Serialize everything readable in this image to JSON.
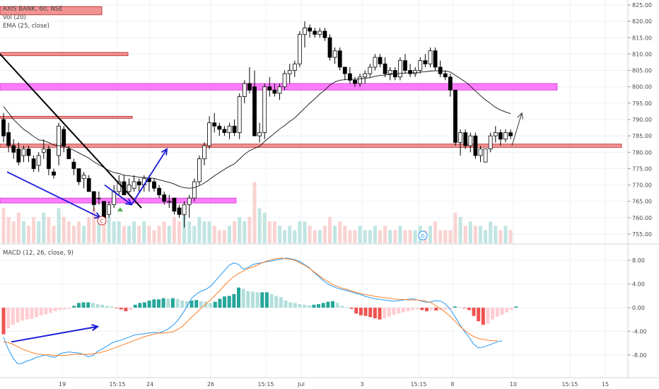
{
  "header": {
    "symbol": "AXIS BANK, 60, NSE",
    "vol": "Vol (20)",
    "ema": "EMA (25, close)",
    "macd": "MACD (12, 26, close, 9)"
  },
  "colors": {
    "up": "#26a69a",
    "down": "#ef5350",
    "candle_up": "#ffffff",
    "candle_down": "#000000",
    "zone_magenta": "#ff66ff",
    "zone_red": "#f08080",
    "arrow_blue": "#1a1adb",
    "macd_line": "#2196f3",
    "signal_line": "#ff7f27",
    "grid": "#eef1f5"
  },
  "chart_data": [
    {
      "type": "candlestick",
      "title": "AXIS BANK, 60, NSE",
      "ylim": [
        751,
        826
      ],
      "y_ticks": [
        755,
        760,
        765,
        770,
        775,
        780,
        785,
        790,
        795,
        800,
        805,
        810,
        815,
        820,
        825
      ],
      "x_tick_labels": [
        "19",
        "15:15",
        "24",
        "26",
        "15:15",
        "Jul",
        "3",
        "15:15",
        "8",
        "10",
        "15:15",
        "15"
      ],
      "ohlc": [
        [
          790,
          792,
          783,
          785
        ],
        [
          786,
          789,
          780,
          782
        ],
        [
          782,
          784,
          778,
          780
        ],
        [
          781,
          783,
          776,
          777
        ],
        [
          779,
          782,
          777,
          781
        ],
        [
          781,
          782,
          777,
          779
        ],
        [
          778,
          779,
          774,
          775
        ],
        [
          776,
          780,
          774,
          779
        ],
        [
          780,
          784,
          778,
          781
        ],
        [
          781,
          782,
          773,
          775
        ],
        [
          774,
          775,
          772,
          773
        ],
        [
          779,
          789,
          776,
          788
        ],
        [
          787,
          788,
          780,
          782
        ],
        [
          781,
          782,
          778,
          778
        ],
        [
          777,
          778,
          773,
          775
        ],
        [
          775,
          775,
          770,
          771
        ],
        [
          772,
          774,
          769,
          773
        ],
        [
          772,
          773,
          768,
          768
        ],
        [
          768,
          768,
          762,
          764
        ],
        [
          766,
          768,
          764,
          766
        ],
        [
          765,
          765,
          759,
          760
        ],
        [
          761,
          765,
          760,
          764
        ],
        [
          764,
          770,
          763,
          768
        ],
        [
          768,
          773,
          767,
          771
        ],
        [
          771,
          773,
          767,
          767
        ],
        [
          768,
          772,
          767,
          770
        ],
        [
          769,
          773,
          768,
          771
        ],
        [
          771,
          772,
          768,
          770
        ],
        [
          770,
          773,
          768,
          772
        ],
        [
          772,
          773,
          768,
          771
        ],
        [
          771,
          772,
          768,
          769
        ],
        [
          769,
          770,
          766,
          767
        ],
        [
          767,
          768,
          764,
          765
        ],
        [
          765,
          767,
          763,
          765
        ],
        [
          766,
          766,
          761,
          762
        ],
        [
          763,
          764,
          760,
          761
        ],
        [
          761,
          765,
          757,
          764
        ],
        [
          764,
          767,
          760,
          766
        ],
        [
          766,
          772,
          765,
          771
        ],
        [
          771,
          779,
          770,
          778
        ],
        [
          778,
          783,
          776,
          782
        ],
        [
          782,
          791,
          781,
          789
        ],
        [
          789,
          792,
          786,
          788
        ],
        [
          788,
          789,
          785,
          787
        ],
        [
          787,
          788,
          785,
          786
        ],
        [
          786,
          789,
          784,
          788
        ],
        [
          788,
          790,
          785,
          786
        ],
        [
          786,
          798,
          784,
          797
        ],
        [
          797,
          802,
          795,
          801
        ],
        [
          801,
          806,
          798,
          799
        ],
        [
          800,
          805,
          785,
          785
        ],
        [
          785,
          789,
          783,
          786
        ],
        [
          786,
          801,
          784,
          800
        ],
        [
          800,
          803,
          797,
          799
        ],
        [
          799,
          801,
          797,
          798
        ],
        [
          798,
          801,
          796,
          800
        ],
        [
          800,
          805,
          799,
          804
        ],
        [
          804,
          807,
          801,
          805
        ],
        [
          805,
          808,
          803,
          807
        ],
        [
          807,
          817,
          806,
          816
        ],
        [
          816,
          820,
          812,
          818
        ],
        [
          818,
          819,
          815,
          817
        ],
        [
          817,
          818,
          815,
          816
        ],
        [
          816,
          818,
          815,
          817
        ],
        [
          817,
          818,
          814,
          815
        ],
        [
          815,
          816,
          808,
          809
        ],
        [
          809,
          812,
          807,
          811
        ],
        [
          811,
          812,
          805,
          806
        ],
        [
          806,
          806,
          802,
          804
        ],
        [
          804,
          806,
          801,
          802
        ],
        [
          802,
          803,
          800,
          801
        ],
        [
          801,
          804,
          800,
          803
        ],
        [
          803,
          805,
          801,
          804
        ],
        [
          804,
          807,
          803,
          806
        ],
        [
          806,
          810,
          805,
          809
        ],
        [
          809,
          810,
          806,
          807
        ],
        [
          807,
          809,
          803,
          804
        ],
        [
          804,
          806,
          802,
          805
        ],
        [
          805,
          806,
          802,
          803
        ],
        [
          803,
          809,
          802,
          808
        ],
        [
          808,
          810,
          804,
          805
        ],
        [
          805,
          807,
          803,
          804
        ],
        [
          804,
          806,
          803,
          805
        ],
        [
          805,
          809,
          804,
          808
        ],
        [
          808,
          810,
          806,
          807
        ],
        [
          807,
          812,
          806,
          811
        ],
        [
          811,
          812,
          805,
          806
        ],
        [
          806,
          808,
          803,
          804
        ],
        [
          804,
          805,
          802,
          803
        ],
        [
          803,
          804,
          797,
          799
        ],
        [
          799,
          799,
          782,
          783
        ],
        [
          783,
          787,
          779,
          786
        ],
        [
          786,
          787,
          781,
          782
        ],
        [
          782,
          786,
          780,
          785
        ],
        [
          785,
          786,
          778,
          779
        ],
        [
          779,
          782,
          777,
          781
        ],
        [
          777,
          781,
          777,
          781
        ],
        [
          781,
          786,
          780,
          785
        ],
        [
          785,
          788,
          783,
          786
        ],
        [
          786,
          787,
          782,
          784
        ],
        [
          784,
          787,
          783,
          786
        ],
        [
          786,
          787,
          784,
          785
        ]
      ],
      "volume": [
        8,
        6,
        5,
        7,
        5,
        4,
        6,
        5,
        7,
        6,
        4,
        8,
        6,
        5,
        4,
        5,
        4,
        6,
        8,
        5,
        7,
        6,
        5,
        5,
        4,
        4,
        5,
        4,
        5,
        4,
        3,
        4,
        5,
        4,
        6,
        5,
        7,
        5,
        4,
        6,
        5,
        5,
        4,
        3,
        3,
        4,
        5,
        6,
        5,
        6,
        14,
        8,
        7,
        5,
        5,
        4,
        3,
        4,
        3,
        5,
        5,
        4,
        3,
        3,
        4,
        6,
        4,
        5,
        4,
        3,
        3,
        4,
        3,
        3,
        4,
        3,
        4,
        3,
        3,
        4,
        3,
        3,
        3,
        4,
        3,
        4,
        5,
        3,
        3,
        3,
        7,
        6,
        4,
        5,
        4,
        4,
        3,
        5,
        4,
        3,
        4,
        3
      ],
      "ema_25": [
        794,
        792,
        790,
        788.5,
        787,
        786,
        784.8,
        783.8,
        783.5,
        783,
        782.2,
        782,
        781.8,
        781.3,
        780.6,
        779.8,
        779,
        778.2,
        777.1,
        776.2,
        775.3,
        774.4,
        773.8,
        773.5,
        773,
        772.8,
        772.6,
        772.4,
        772.3,
        772.2,
        772,
        771.6,
        771.2,
        770.8,
        770.3,
        769.6,
        769.2,
        769,
        769.2,
        769.8,
        770.6,
        771.7,
        772.8,
        773.8,
        774.8,
        775.7,
        776.5,
        777.9,
        779.4,
        780.5,
        781.2,
        781.8,
        783.3,
        784.6,
        785.8,
        787.1,
        788.2,
        789.4,
        790.5,
        792,
        793.5,
        795,
        796.3,
        797.8,
        799,
        800.5,
        801.5,
        802,
        802.2,
        802.3,
        802.3,
        802.4,
        802.6,
        802.8,
        803.2,
        803.5,
        803.6,
        803.8,
        803.9,
        804.1,
        804.2,
        804.3,
        804.3,
        804.5,
        804.6,
        804.8,
        804.9,
        804.9,
        804.8,
        804.5,
        803.5,
        802.5,
        801.5,
        800.2,
        798.7,
        797.3,
        796,
        794.9,
        793.7,
        792.9,
        792.3,
        791.8
      ],
      "trendline_points": [
        [
          0,
          810
        ],
        [
          200,
          763
        ]
      ],
      "arrows": [
        {
          "from": [
            10,
            774
          ],
          "to": [
            142,
            760
          ]
        },
        {
          "from": [
            148,
            770
          ],
          "to": [
            186,
            764
          ]
        },
        {
          "from": [
            186,
            764
          ],
          "to": [
            236,
            781
          ]
        },
        {
          "from": [
            724,
            782
          ],
          "to": [
            738,
            792
          ]
        }
      ],
      "horizontal_zones": [
        {
          "color": "magenta",
          "range": [
            764.5,
            766
          ]
        },
        {
          "color": "magenta",
          "range": [
            799,
            801
          ]
        },
        {
          "color": "red",
          "range": [
            781.5,
            782.5
          ]
        },
        {
          "color": "red",
          "range": [
            790.5,
            791
          ]
        },
        {
          "color": "red",
          "range": [
            809.5,
            810.5
          ]
        },
        {
          "color": "red",
          "range": [
            822,
            824.5
          ]
        }
      ],
      "annotations": [
        "C",
        "D"
      ]
    },
    {
      "type": "bar",
      "title": "MACD (12, 26, close, 9)",
      "ylim": [
        -10,
        10
      ],
      "y_ticks": [
        -8,
        -4,
        0,
        4,
        8
      ],
      "y_tick_labels": [
        "-8.00",
        "-4.00",
        "0.00",
        "4.00",
        "8.00"
      ],
      "histogram": [
        -4.5,
        -3.5,
        -2.9,
        -2.5,
        -2.2,
        -2,
        -1.9,
        -1.6,
        -1.3,
        -1.1,
        -0.9,
        -0.6,
        -0.4,
        -0.3,
        -0.2,
        0.3,
        0.8,
        0.9,
        0.9,
        0.8,
        0.6,
        0.5,
        0.3,
        0.2,
        -0.1,
        -0.3,
        -0.6,
        -0.4,
        0.5,
        0.8,
        0.9,
        1.2,
        1.4,
        1.4,
        1.6,
        1.5,
        1.6,
        1.5,
        1.2,
        1.1,
        1.2,
        1.3,
        1.1,
        1,
        0.8,
        1,
        1.5,
        1.9,
        2,
        2.3,
        3.4,
        3.2,
        2.8,
        2.7,
        2.6,
        2.6,
        2.6,
        2.3,
        2,
        1.8,
        1.2,
        0.9,
        0.8,
        0.6,
        0.5,
        0.4,
        0.5,
        0.6,
        0.8,
        1,
        1.1,
        0.8,
        0.3,
        0.1,
        -0.2,
        -1,
        -1.3,
        -1.4,
        -1.6,
        -1.8,
        -2,
        -1.8,
        -1.5,
        -1.2,
        -1,
        -0.8,
        -0.6,
        -0.4,
        -0.3,
        -0.4,
        -0.6,
        -0.4,
        -0.5,
        -0.4,
        -0.3,
        -0.2,
        0.2,
        0.1,
        -0.1,
        -0.4,
        -1.4,
        -2.3,
        -2.9,
        -2.7,
        -2,
        -1.5,
        -1.2,
        -0.8,
        -0.4,
        0.2
      ],
      "macd_line": [
        -5,
        -7,
        -8.5,
        -9.5,
        -9.4,
        -9,
        -8.8,
        -8.4,
        -8.2,
        -8,
        -8.3,
        -8.4,
        -7.8,
        -7.6,
        -7.5,
        -7.6,
        -7.7,
        -7.9,
        -8.3,
        -8.1,
        -7.4,
        -7,
        -6.5,
        -6,
        -5.7,
        -5.5,
        -5.2,
        -4.9,
        -4.6,
        -4.5,
        -4.4,
        -4.3,
        -4.2,
        -4.3,
        -4,
        -3.6,
        -3,
        -2.2,
        -1.1,
        0.2,
        1.6,
        2.3,
        2.8,
        3.1,
        3.6,
        4.5,
        5.4,
        6.3,
        7.2,
        7.6,
        7.3,
        6.5,
        6.8,
        7.3,
        7.5,
        7.6,
        7.8,
        7.9,
        8.1,
        8.2,
        8.4,
        8.3,
        8.1,
        7.8,
        7.3,
        6.8,
        6,
        5.3,
        4.6,
        4,
        3.6,
        3.3,
        3.1,
        2.9,
        2.7,
        2.4,
        2.2,
        1.9,
        1.7,
        1.5,
        1.4,
        1.3,
        1.2,
        1.1,
        1.2,
        1.3,
        1.4,
        1.5,
        1.3,
        1.1,
        0.9,
        1,
        1.2,
        1.1,
        0.6,
        -0.3,
        -1.5,
        -2.8,
        -4,
        -5,
        -6.2,
        -6.8,
        -6.7,
        -6.4,
        -6.1,
        -5.8,
        -5.6
      ],
      "signal_line": [
        -5.8,
        -5.9,
        -6.2,
        -6.6,
        -7,
        -7.3,
        -7.6,
        -7.8,
        -7.9,
        -8,
        -8,
        -8.1,
        -8.1,
        -8.1,
        -8,
        -7.9,
        -7.9,
        -7.9,
        -7.9,
        -7.8,
        -7.7,
        -7.5,
        -7.3,
        -7,
        -6.7,
        -6.4,
        -6.1,
        -5.8,
        -5.5,
        -5.2,
        -4.9,
        -4.7,
        -4.5,
        -4.3,
        -4.3,
        -4.2,
        -4.1,
        -3.7,
        -3.2,
        -2.4,
        -1.6,
        -0.9,
        -0.1,
        0.6,
        1.3,
        2.1,
        2.9,
        3.8,
        4.6,
        5.3,
        5.8,
        6.2,
        6.6,
        6.9,
        7.2,
        7.6,
        7.9,
        8.1,
        8.3,
        8.4,
        8.3,
        8.2,
        8,
        7.6,
        7.2,
        6.7,
        6.1,
        5.5,
        4.9,
        4.4,
        3.9,
        3.6,
        3.3,
        3.1,
        2.8,
        2.6,
        2.4,
        2.2,
        2.1,
        1.9,
        1.8,
        1.7,
        1.6,
        1.5,
        1.4,
        1.4,
        1.3,
        1.3,
        1.3,
        1.2,
        1.1,
        0.8,
        0.3,
        -0.2,
        -0.8,
        -1.5,
        -2.3,
        -3.1,
        -3.8,
        -4.4,
        -4.9,
        -5.2,
        -5.4,
        -5.5,
        -5.6,
        -5.6
      ],
      "arrows": [
        {
          "from": [
            16,
            -5.8
          ],
          "to": [
            138,
            -3.2
          ]
        }
      ]
    }
  ]
}
